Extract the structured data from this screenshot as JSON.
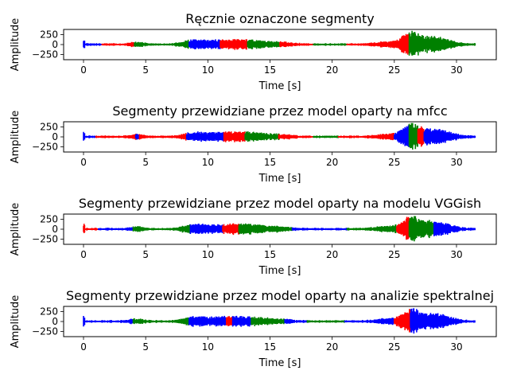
{
  "colors": {
    "red": "#ff0000",
    "green": "#008000",
    "blue": "#0000ff"
  },
  "chart_data": [
    {
      "type": "line",
      "title": "Ręcznie oznaczone segmenty",
      "xlabel": "Time [s]",
      "ylabel": "Amplitude",
      "xlim": [
        -1.6,
        33.2
      ],
      "ylim": [
        -380,
        380
      ],
      "xticks": [
        0,
        5,
        10,
        15,
        20,
        25,
        30
      ],
      "yticks": [
        -250,
        0,
        250
      ],
      "yticklabels": [
        "−250",
        "0",
        "250"
      ],
      "grid": false,
      "segments": [
        {
          "start": 0.0,
          "end": 1.5,
          "label": "blue"
        },
        {
          "start": 1.5,
          "end": 4.1,
          "label": "red"
        },
        {
          "start": 4.1,
          "end": 8.5,
          "label": "green"
        },
        {
          "start": 8.5,
          "end": 11.0,
          "label": "blue"
        },
        {
          "start": 11.0,
          "end": 13.2,
          "label": "red"
        },
        {
          "start": 13.2,
          "end": 15.8,
          "label": "green"
        },
        {
          "start": 15.8,
          "end": 18.5,
          "label": "red"
        },
        {
          "start": 18.5,
          "end": 21.2,
          "label": "green"
        },
        {
          "start": 21.2,
          "end": 25.0,
          "label": "red"
        },
        {
          "start": 25.0,
          "end": 26.2,
          "label": "red"
        },
        {
          "start": 26.2,
          "end": 28.3,
          "label": "green"
        },
        {
          "start": 28.3,
          "end": 31.5,
          "label": "green"
        }
      ]
    },
    {
      "type": "line",
      "title": "Segmenty przewidziane przez model oparty na mfcc",
      "xlabel": "Time [s]",
      "ylabel": "Amplitude",
      "xlim": [
        -1.6,
        33.2
      ],
      "ylim": [
        -380,
        380
      ],
      "xticks": [
        0,
        5,
        10,
        15,
        20,
        25,
        30
      ],
      "yticks": [
        -250,
        0,
        250
      ],
      "yticklabels": [
        "−250",
        "0",
        "250"
      ],
      "grid": false,
      "segments": [
        {
          "start": 0.0,
          "end": 1.0,
          "label": "blue"
        },
        {
          "start": 1.0,
          "end": 4.2,
          "label": "red"
        },
        {
          "start": 4.2,
          "end": 4.5,
          "label": "blue"
        },
        {
          "start": 4.5,
          "end": 8.3,
          "label": "red"
        },
        {
          "start": 8.3,
          "end": 11.3,
          "label": "blue"
        },
        {
          "start": 11.3,
          "end": 13.0,
          "label": "red"
        },
        {
          "start": 13.0,
          "end": 15.7,
          "label": "green"
        },
        {
          "start": 15.7,
          "end": 18.5,
          "label": "red"
        },
        {
          "start": 18.5,
          "end": 20.5,
          "label": "green"
        },
        {
          "start": 20.5,
          "end": 25.0,
          "label": "red"
        },
        {
          "start": 25.0,
          "end": 26.2,
          "label": "blue"
        },
        {
          "start": 26.2,
          "end": 26.9,
          "label": "green"
        },
        {
          "start": 26.9,
          "end": 27.4,
          "label": "red"
        },
        {
          "start": 27.4,
          "end": 31.5,
          "label": "blue"
        }
      ]
    },
    {
      "type": "line",
      "title": "Segmenty przewidziane przez model oparty na modelu VGGish",
      "xlabel": "Time [s]",
      "ylabel": "Amplitude",
      "xlim": [
        -1.6,
        33.2
      ],
      "ylim": [
        -380,
        380
      ],
      "xticks": [
        0,
        5,
        10,
        15,
        20,
        25,
        30
      ],
      "yticks": [
        -250,
        0,
        250
      ],
      "yticklabels": [
        "−250",
        "0",
        "250"
      ],
      "grid": false,
      "segments": [
        {
          "start": 0.0,
          "end": 1.2,
          "label": "red"
        },
        {
          "start": 1.2,
          "end": 4.0,
          "label": "blue"
        },
        {
          "start": 4.0,
          "end": 8.6,
          "label": "green"
        },
        {
          "start": 8.6,
          "end": 11.2,
          "label": "blue"
        },
        {
          "start": 11.2,
          "end": 12.5,
          "label": "red"
        },
        {
          "start": 12.5,
          "end": 16.8,
          "label": "green"
        },
        {
          "start": 16.8,
          "end": 21.2,
          "label": "blue"
        },
        {
          "start": 21.2,
          "end": 25.2,
          "label": "green"
        },
        {
          "start": 25.2,
          "end": 26.2,
          "label": "red"
        },
        {
          "start": 26.2,
          "end": 28.2,
          "label": "green"
        },
        {
          "start": 28.2,
          "end": 31.5,
          "label": "blue"
        }
      ]
    },
    {
      "type": "line",
      "title": "Segmenty przewidziane przez model oparty na analizie spektralnej",
      "xlabel": "Time [s]",
      "ylabel": "Amplitude",
      "xlim": [
        -1.6,
        33.2
      ],
      "ylim": [
        -380,
        380
      ],
      "xticks": [
        0,
        5,
        10,
        15,
        20,
        25,
        30
      ],
      "yticks": [
        -250,
        0,
        250
      ],
      "yticklabels": [
        "−250",
        "0",
        "250"
      ],
      "grid": false,
      "segments": [
        {
          "start": 0.0,
          "end": 4.0,
          "label": "blue"
        },
        {
          "start": 4.0,
          "end": 8.5,
          "label": "green"
        },
        {
          "start": 8.5,
          "end": 11.5,
          "label": "blue"
        },
        {
          "start": 11.5,
          "end": 12.0,
          "label": "red"
        },
        {
          "start": 12.0,
          "end": 13.5,
          "label": "blue"
        },
        {
          "start": 13.5,
          "end": 16.2,
          "label": "green"
        },
        {
          "start": 16.2,
          "end": 18.0,
          "label": "blue"
        },
        {
          "start": 18.0,
          "end": 21.0,
          "label": "green"
        },
        {
          "start": 21.0,
          "end": 25.0,
          "label": "blue"
        },
        {
          "start": 25.0,
          "end": 26.3,
          "label": "red"
        },
        {
          "start": 26.3,
          "end": 31.5,
          "label": "blue"
        }
      ]
    }
  ]
}
